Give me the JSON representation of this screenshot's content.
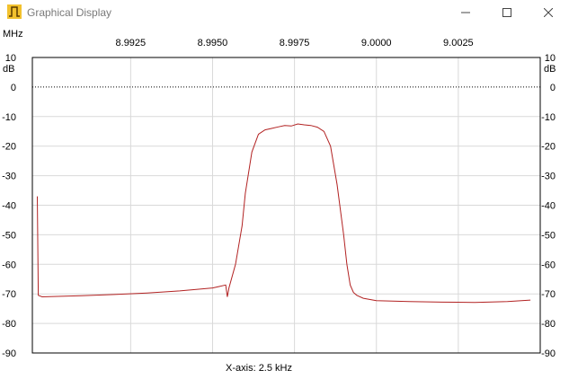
{
  "window": {
    "title": "Graphical Display",
    "icon": "pulse-icon",
    "controls": [
      "minimize-icon",
      "maximize-icon",
      "close-icon"
    ]
  },
  "colors": {
    "trace": "#b22222",
    "grid": "#d9d9d9",
    "axis": "#000000"
  },
  "x_unit_label": "MHz",
  "y_unit_label": "dB",
  "x_axis_caption": "X-axis: 2.5 kHz",
  "chart_data": {
    "type": "line",
    "xlabel": "MHz",
    "ylabel": "dB",
    "xlim": [
      8.9895,
      9.005
    ],
    "ylim": [
      -90,
      10
    ],
    "x_tick_labels": [
      "8.9925",
      "8.9950",
      "8.9975",
      "9.0000",
      "9.0025"
    ],
    "x_ticks": [
      8.9925,
      8.995,
      8.9975,
      9.0,
      9.0025
    ],
    "y_ticks": [
      10,
      0,
      -10,
      -20,
      -30,
      -40,
      -50,
      -60,
      -70,
      -80,
      -90
    ],
    "y_tick_labels": [
      "10",
      "0",
      "-10",
      "-20",
      "-30",
      "-40",
      "-50",
      "-60",
      "-70",
      "-80",
      "-90"
    ],
    "grid": true,
    "reference_line": {
      "y": 0,
      "style": "dotted"
    },
    "series": [
      {
        "values_x": [
          8.98965,
          8.98968,
          8.9898,
          8.9905,
          8.991,
          8.992,
          8.993,
          8.994,
          8.9945,
          8.995,
          8.9952,
          8.9954,
          8.99545,
          8.9955,
          8.9957,
          8.9959,
          8.996,
          8.9962,
          8.9964,
          8.9966,
          8.9968,
          8.997,
          8.9972,
          8.9974,
          8.9976,
          8.9978,
          8.998,
          8.9982,
          8.9984,
          8.9986,
          8.9988,
          8.999,
          8.9991,
          8.9992,
          8.9993,
          8.9994,
          8.9996,
          9.0,
          9.001,
          9.002,
          9.003,
          9.004,
          9.0047
        ],
        "values_y": [
          -37,
          -70.5,
          -71,
          -70.8,
          -70.6,
          -70.2,
          -69.7,
          -69,
          -68.5,
          -68,
          -67.5,
          -67,
          -71,
          -68,
          -60,
          -47,
          -36,
          -22,
          -16,
          -14.5,
          -14,
          -13.5,
          -13,
          -13.2,
          -12.5,
          -12.8,
          -13,
          -13.6,
          -15,
          -20,
          -33,
          -50,
          -60,
          -67,
          -69.5,
          -70.5,
          -71.5,
          -72.3,
          -72.6,
          -72.8,
          -72.9,
          -72.6,
          -72.1
        ]
      }
    ]
  }
}
